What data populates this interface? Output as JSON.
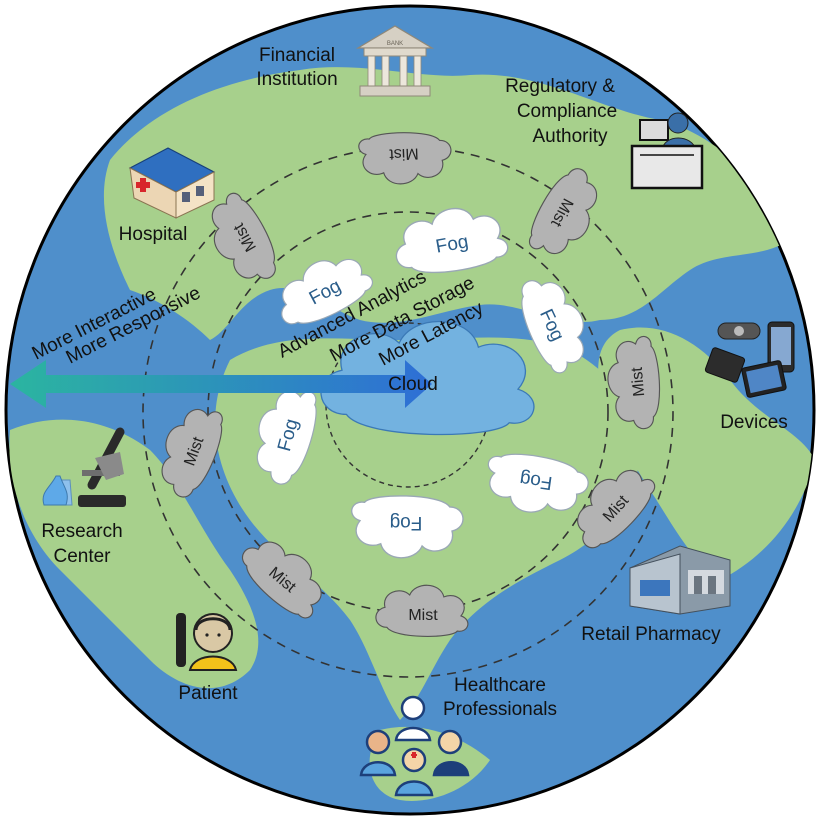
{
  "colors": {
    "ocean": "#4f8fcb",
    "land": "#a7d08c",
    "fog_fill": "#ffffff",
    "fog_text": "#2a5d8a",
    "mist_fill": "#b3b3b3",
    "cloud_fill": "#73b2e0",
    "arrow_start": "#2bb5a0",
    "arrow_end": "#2e6ed6",
    "ring_stroke": "#333333"
  },
  "center": {
    "label": "Cloud",
    "icon": "cloud-icon"
  },
  "arrow_labels": {
    "line1": "Advanced Analytics",
    "line2": "More Data Storage",
    "line3": "More Latency",
    "outer1": "More Interactive",
    "outer2": "More Responsive"
  },
  "fog_label": "Fog",
  "mist_label": "Mist",
  "fog_nodes": [
    {
      "label": "Fog"
    },
    {
      "label": "Fog"
    },
    {
      "label": "Fog"
    },
    {
      "label": "Fog"
    },
    {
      "label": "Fog"
    },
    {
      "label": "Fog"
    }
  ],
  "mist_nodes": [
    {
      "label": "Mist"
    },
    {
      "label": "Mist"
    },
    {
      "label": "Mist"
    },
    {
      "label": "Mist"
    },
    {
      "label": "Mist"
    },
    {
      "label": "Mist"
    },
    {
      "label": "Mist"
    },
    {
      "label": "Mist"
    }
  ],
  "stakeholders": {
    "financial": {
      "line1": "Financial",
      "line2": "Institution",
      "icon": "bank-icon",
      "sign": "BANK"
    },
    "regulatory": {
      "line1": "Regulatory &",
      "line2": "Compliance",
      "line3": "Authority",
      "icon": "officer-at-desk-icon"
    },
    "hospital": {
      "line1": "Hospital",
      "icon": "hospital-building-icon"
    },
    "devices": {
      "line1": "Devices",
      "icon": "mobile-devices-icon"
    },
    "research": {
      "line1": "Research",
      "line2": "Center",
      "icon": "microscope-icon"
    },
    "pharmacy": {
      "line1": "Retail Pharmacy",
      "icon": "pharmacy-store-icon"
    },
    "patient": {
      "line1": "Patient",
      "icon": "patient-icon"
    },
    "professionals": {
      "line1": "Healthcare",
      "line2": "Professionals",
      "icon": "medical-staff-icon"
    }
  }
}
